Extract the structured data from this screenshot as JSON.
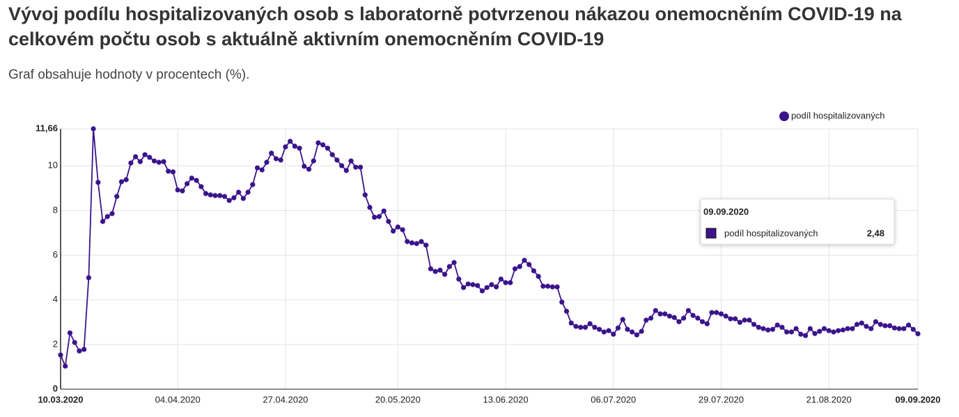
{
  "chart_data": {
    "type": "line",
    "title": "Vývoj podílu hospitalizovaných osob s laboratorně potvrzenou nákazou onemocněním COVID-19 na celkovém počtu osob s aktuálně aktivním onemocněním COVID-19",
    "subtitle": "Graf obsahuje hodnoty v procentech (%).",
    "categories": [
      "10.03.2020",
      null,
      null,
      null,
      null,
      null,
      null,
      null,
      null,
      null,
      null,
      null,
      null,
      null,
      null,
      null,
      null,
      null,
      null,
      null,
      null,
      null,
      null,
      null,
      null,
      "04.04.2020",
      null,
      null,
      null,
      null,
      null,
      null,
      null,
      null,
      null,
      null,
      null,
      null,
      null,
      null,
      null,
      null,
      null,
      null,
      null,
      null,
      null,
      null,
      "27.04.2020",
      null,
      null,
      null,
      null,
      null,
      null,
      null,
      null,
      null,
      null,
      null,
      null,
      null,
      null,
      null,
      null,
      null,
      null,
      null,
      null,
      null,
      null,
      null,
      "20.05.2020",
      null,
      null,
      null,
      null,
      null,
      null,
      null,
      null,
      null,
      null,
      null,
      null,
      null,
      null,
      null,
      null,
      null,
      null,
      null,
      null,
      null,
      null,
      "13.06.2020",
      null,
      null,
      null,
      null,
      null,
      null,
      null,
      null,
      null,
      null,
      null,
      null,
      null,
      null,
      null,
      null,
      null,
      null,
      null,
      null,
      null,
      null,
      "06.07.2020",
      null,
      null,
      null,
      null,
      null,
      null,
      null,
      null,
      null,
      null,
      null,
      null,
      null,
      null,
      null,
      null,
      null,
      null,
      null,
      null,
      null,
      null,
      "29.07.2020",
      null,
      null,
      null,
      null,
      null,
      null,
      null,
      null,
      null,
      null,
      null,
      null,
      null,
      null,
      null,
      null,
      null,
      null,
      null,
      null,
      null,
      null,
      "21.08.2020",
      null,
      null,
      null,
      null,
      null,
      null,
      null,
      null,
      null,
      null,
      null,
      null,
      null,
      null,
      null,
      null,
      null,
      null,
      "09.09.2020"
    ],
    "series": [
      {
        "name": "podíl hospitalizovaných",
        "color": "#3b148c",
        "values": [
          1.53,
          1.03,
          2.52,
          2.09,
          1.71,
          1.78,
          4.99,
          11.66,
          9.26,
          7.51,
          7.73,
          7.86,
          8.63,
          9.29,
          9.38,
          10.13,
          10.41,
          10.19,
          10.5,
          10.38,
          10.22,
          10.16,
          10.19,
          9.76,
          9.73,
          8.92,
          8.88,
          9.2,
          9.45,
          9.35,
          9.07,
          8.76,
          8.7,
          8.67,
          8.67,
          8.63,
          8.45,
          8.57,
          8.82,
          8.54,
          8.82,
          9.16,
          9.91,
          9.82,
          10.16,
          10.57,
          10.32,
          10.26,
          10.85,
          11.1,
          10.88,
          10.79,
          9.98,
          9.85,
          10.22,
          11.03,
          10.94,
          10.79,
          10.5,
          10.26,
          10.01,
          9.79,
          10.22,
          9.94,
          9.94,
          8.7,
          8.14,
          7.7,
          7.73,
          7.98,
          7.51,
          7.08,
          7.26,
          7.14,
          6.61,
          6.55,
          6.52,
          6.61,
          6.45,
          5.39,
          5.27,
          5.33,
          5.14,
          5.49,
          5.67,
          4.93,
          4.55,
          4.71,
          4.68,
          4.64,
          4.4,
          4.55,
          4.68,
          4.58,
          4.93,
          4.77,
          4.77,
          5.39,
          5.49,
          5.77,
          5.58,
          5.3,
          5.05,
          4.61,
          4.61,
          4.58,
          4.58,
          3.9,
          3.49,
          2.96,
          2.81,
          2.77,
          2.77,
          2.93,
          2.77,
          2.68,
          2.56,
          2.62,
          2.46,
          2.74,
          3.12,
          2.68,
          2.56,
          2.43,
          2.59,
          3.09,
          3.18,
          3.52,
          3.37,
          3.37,
          3.27,
          3.21,
          3.02,
          3.18,
          3.52,
          3.3,
          3.18,
          3.02,
          2.93,
          3.43,
          3.43,
          3.37,
          3.27,
          3.15,
          3.15,
          2.99,
          3.09,
          3.09,
          2.9,
          2.77,
          2.71,
          2.65,
          2.68,
          2.87,
          2.77,
          2.56,
          2.56,
          2.71,
          2.46,
          2.4,
          2.71,
          2.49,
          2.59,
          2.71,
          2.62,
          2.56,
          2.62,
          2.65,
          2.71,
          2.71,
          2.9,
          2.96,
          2.81,
          2.71,
          3.02,
          2.9,
          2.84,
          2.84,
          2.74,
          2.71,
          2.71,
          2.87,
          2.68,
          2.48
        ]
      }
    ],
    "ylim": [
      0,
      11.66
    ],
    "yticks": [
      0,
      2,
      4,
      6,
      8,
      10,
      {
        "value": 11.66,
        "label": "11,66"
      }
    ],
    "grid": true,
    "legend": "top-right",
    "tooltip": {
      "title": "09.09.2020",
      "value_label": "2,48"
    }
  }
}
